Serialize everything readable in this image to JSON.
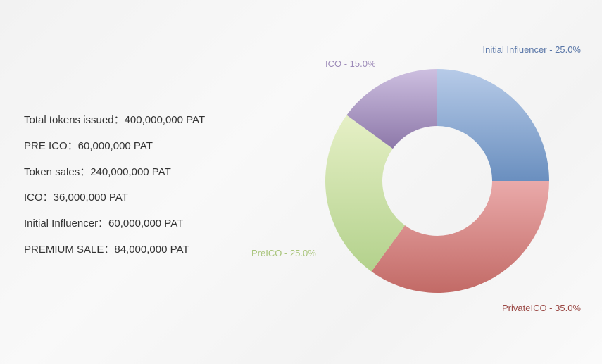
{
  "info": [
    "Total tokens issued：400,000,000 PAT",
    "PRE ICO：60,000,000 PAT",
    "Token sales：240,000,000 PAT",
    "ICO：36,000,000 PAT",
    "Initial Influencer：60,000,000 PAT",
    "PREMIUM SALE：84,000,000 PAT"
  ],
  "chart_data": {
    "type": "pie",
    "donut": true,
    "slices": [
      {
        "name": "Initial Influencer",
        "value": 25.0,
        "label": "Initial Influencer - 25.0%",
        "color_top": "#b7cbe8",
        "color_bottom": "#6a8fbf",
        "text_color": "#5a77a8"
      },
      {
        "name": "PrivateICO",
        "value": 35.0,
        "label": "PrivateICO - 35.0%",
        "color_top": "#eaaaaa",
        "color_bottom": "#c26a66",
        "text_color": "#9a4844"
      },
      {
        "name": "PreICO",
        "value": 25.0,
        "label": "PreICO - 25.0%",
        "color_top": "#e6f0c6",
        "color_bottom": "#b3d18c",
        "text_color": "#a8c47a"
      },
      {
        "name": "ICO",
        "value": 15.0,
        "label": "ICO - 15.0%",
        "color_top": "#cdbfe0",
        "color_bottom": "#8d78a9",
        "text_color": "#9c8ab8"
      }
    ]
  }
}
